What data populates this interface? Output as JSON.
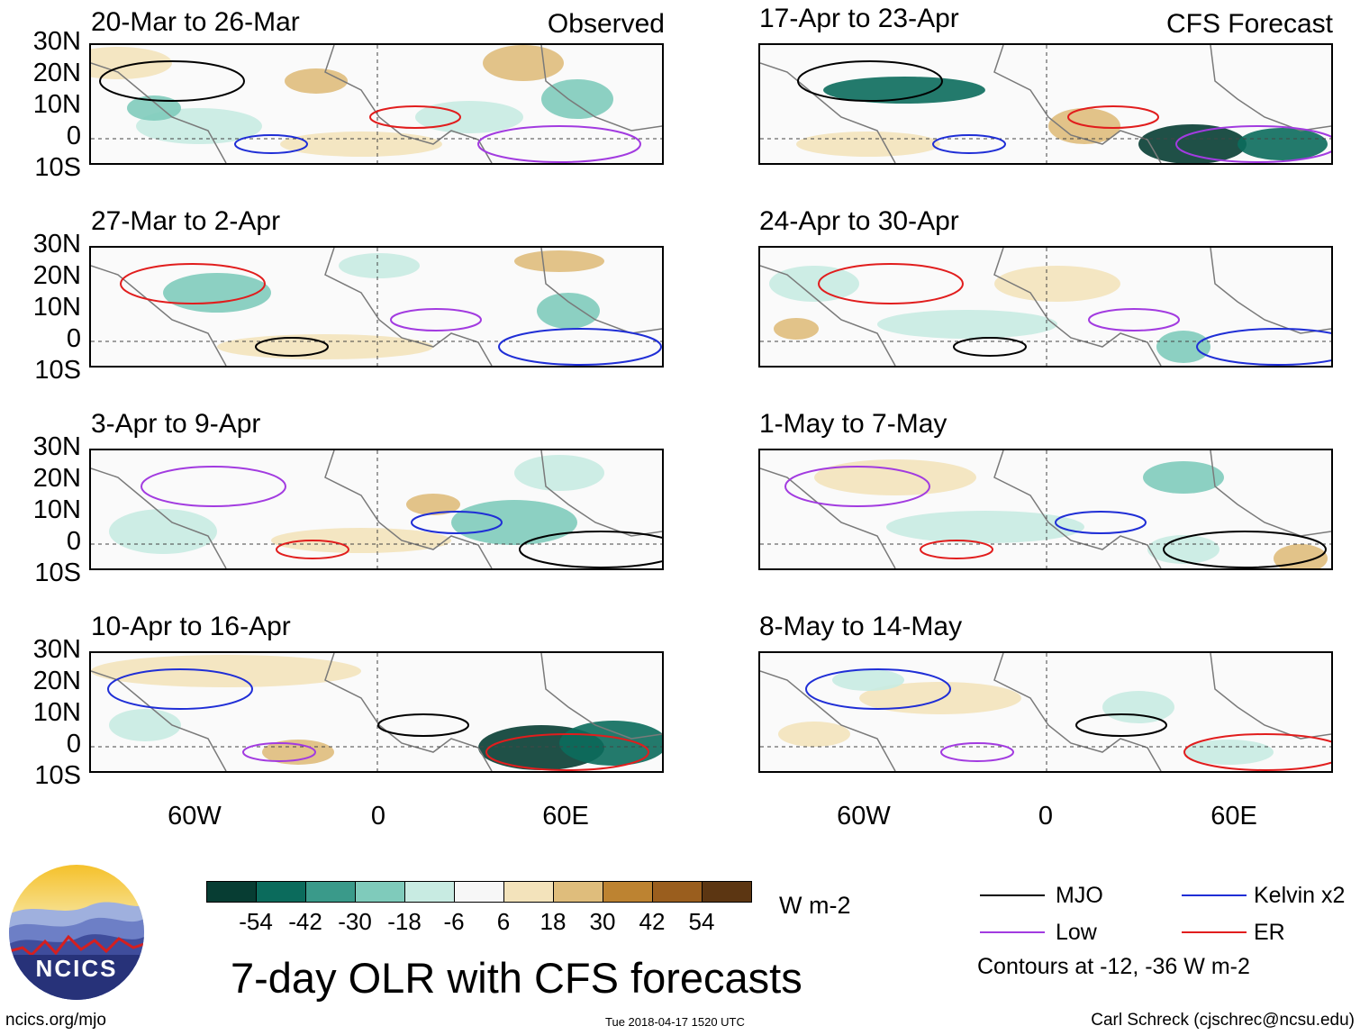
{
  "panels_left_header": "Observed",
  "panels_right_header": "CFS Forecast",
  "panels": [
    {
      "title": "20-Mar to 26-Mar",
      "side": "left",
      "row": 0
    },
    {
      "title": "27-Mar to 2-Apr",
      "side": "left",
      "row": 1
    },
    {
      "title": "3-Apr to 9-Apr",
      "side": "left",
      "row": 2
    },
    {
      "title": "10-Apr to 16-Apr",
      "side": "left",
      "row": 3
    },
    {
      "title": "17-Apr to 23-Apr",
      "side": "right",
      "row": 0
    },
    {
      "title": "24-Apr to 30-Apr",
      "side": "right",
      "row": 1
    },
    {
      "title": "1-May to 7-May",
      "side": "right",
      "row": 2
    },
    {
      "title": "8-May to 14-May",
      "side": "right",
      "row": 3
    }
  ],
  "lat_labels": [
    "30N",
    "20N",
    "10N",
    "0",
    "10S"
  ],
  "lon_labels": [
    "60W",
    "0",
    "60E"
  ],
  "colorbar": {
    "unit": "W m-2",
    "ticks": [
      "-54",
      "-42",
      "-30",
      "-18",
      "-6",
      "6",
      "18",
      "30",
      "42",
      "54"
    ],
    "colors": [
      "#073d33",
      "#0b6b5c",
      "#3a9a8a",
      "#7fcbbb",
      "#c8ebe2",
      "#f7f7f7",
      "#f3e3bb",
      "#dfbd7c",
      "#bd8331",
      "#9a5e1e",
      "#5c3612"
    ]
  },
  "legend": {
    "items": [
      {
        "label": "MJO",
        "color": "#000000"
      },
      {
        "label": "Kelvin x2",
        "color": "#1f2ed6"
      },
      {
        "label": "Low",
        "color": "#a23be0"
      },
      {
        "label": "ER",
        "color": "#e11d1d"
      }
    ],
    "contours_note": "Contours at -12, -36 W m-2"
  },
  "main_title": "7-day OLR with CFS forecasts",
  "logo_text": "NCICS",
  "footer": {
    "left": "ncics.org/mjo",
    "center": "Tue 2018-04-17 1520 UTC",
    "right": "Carl Schreck (cjschrec@ncsu.edu)"
  }
}
